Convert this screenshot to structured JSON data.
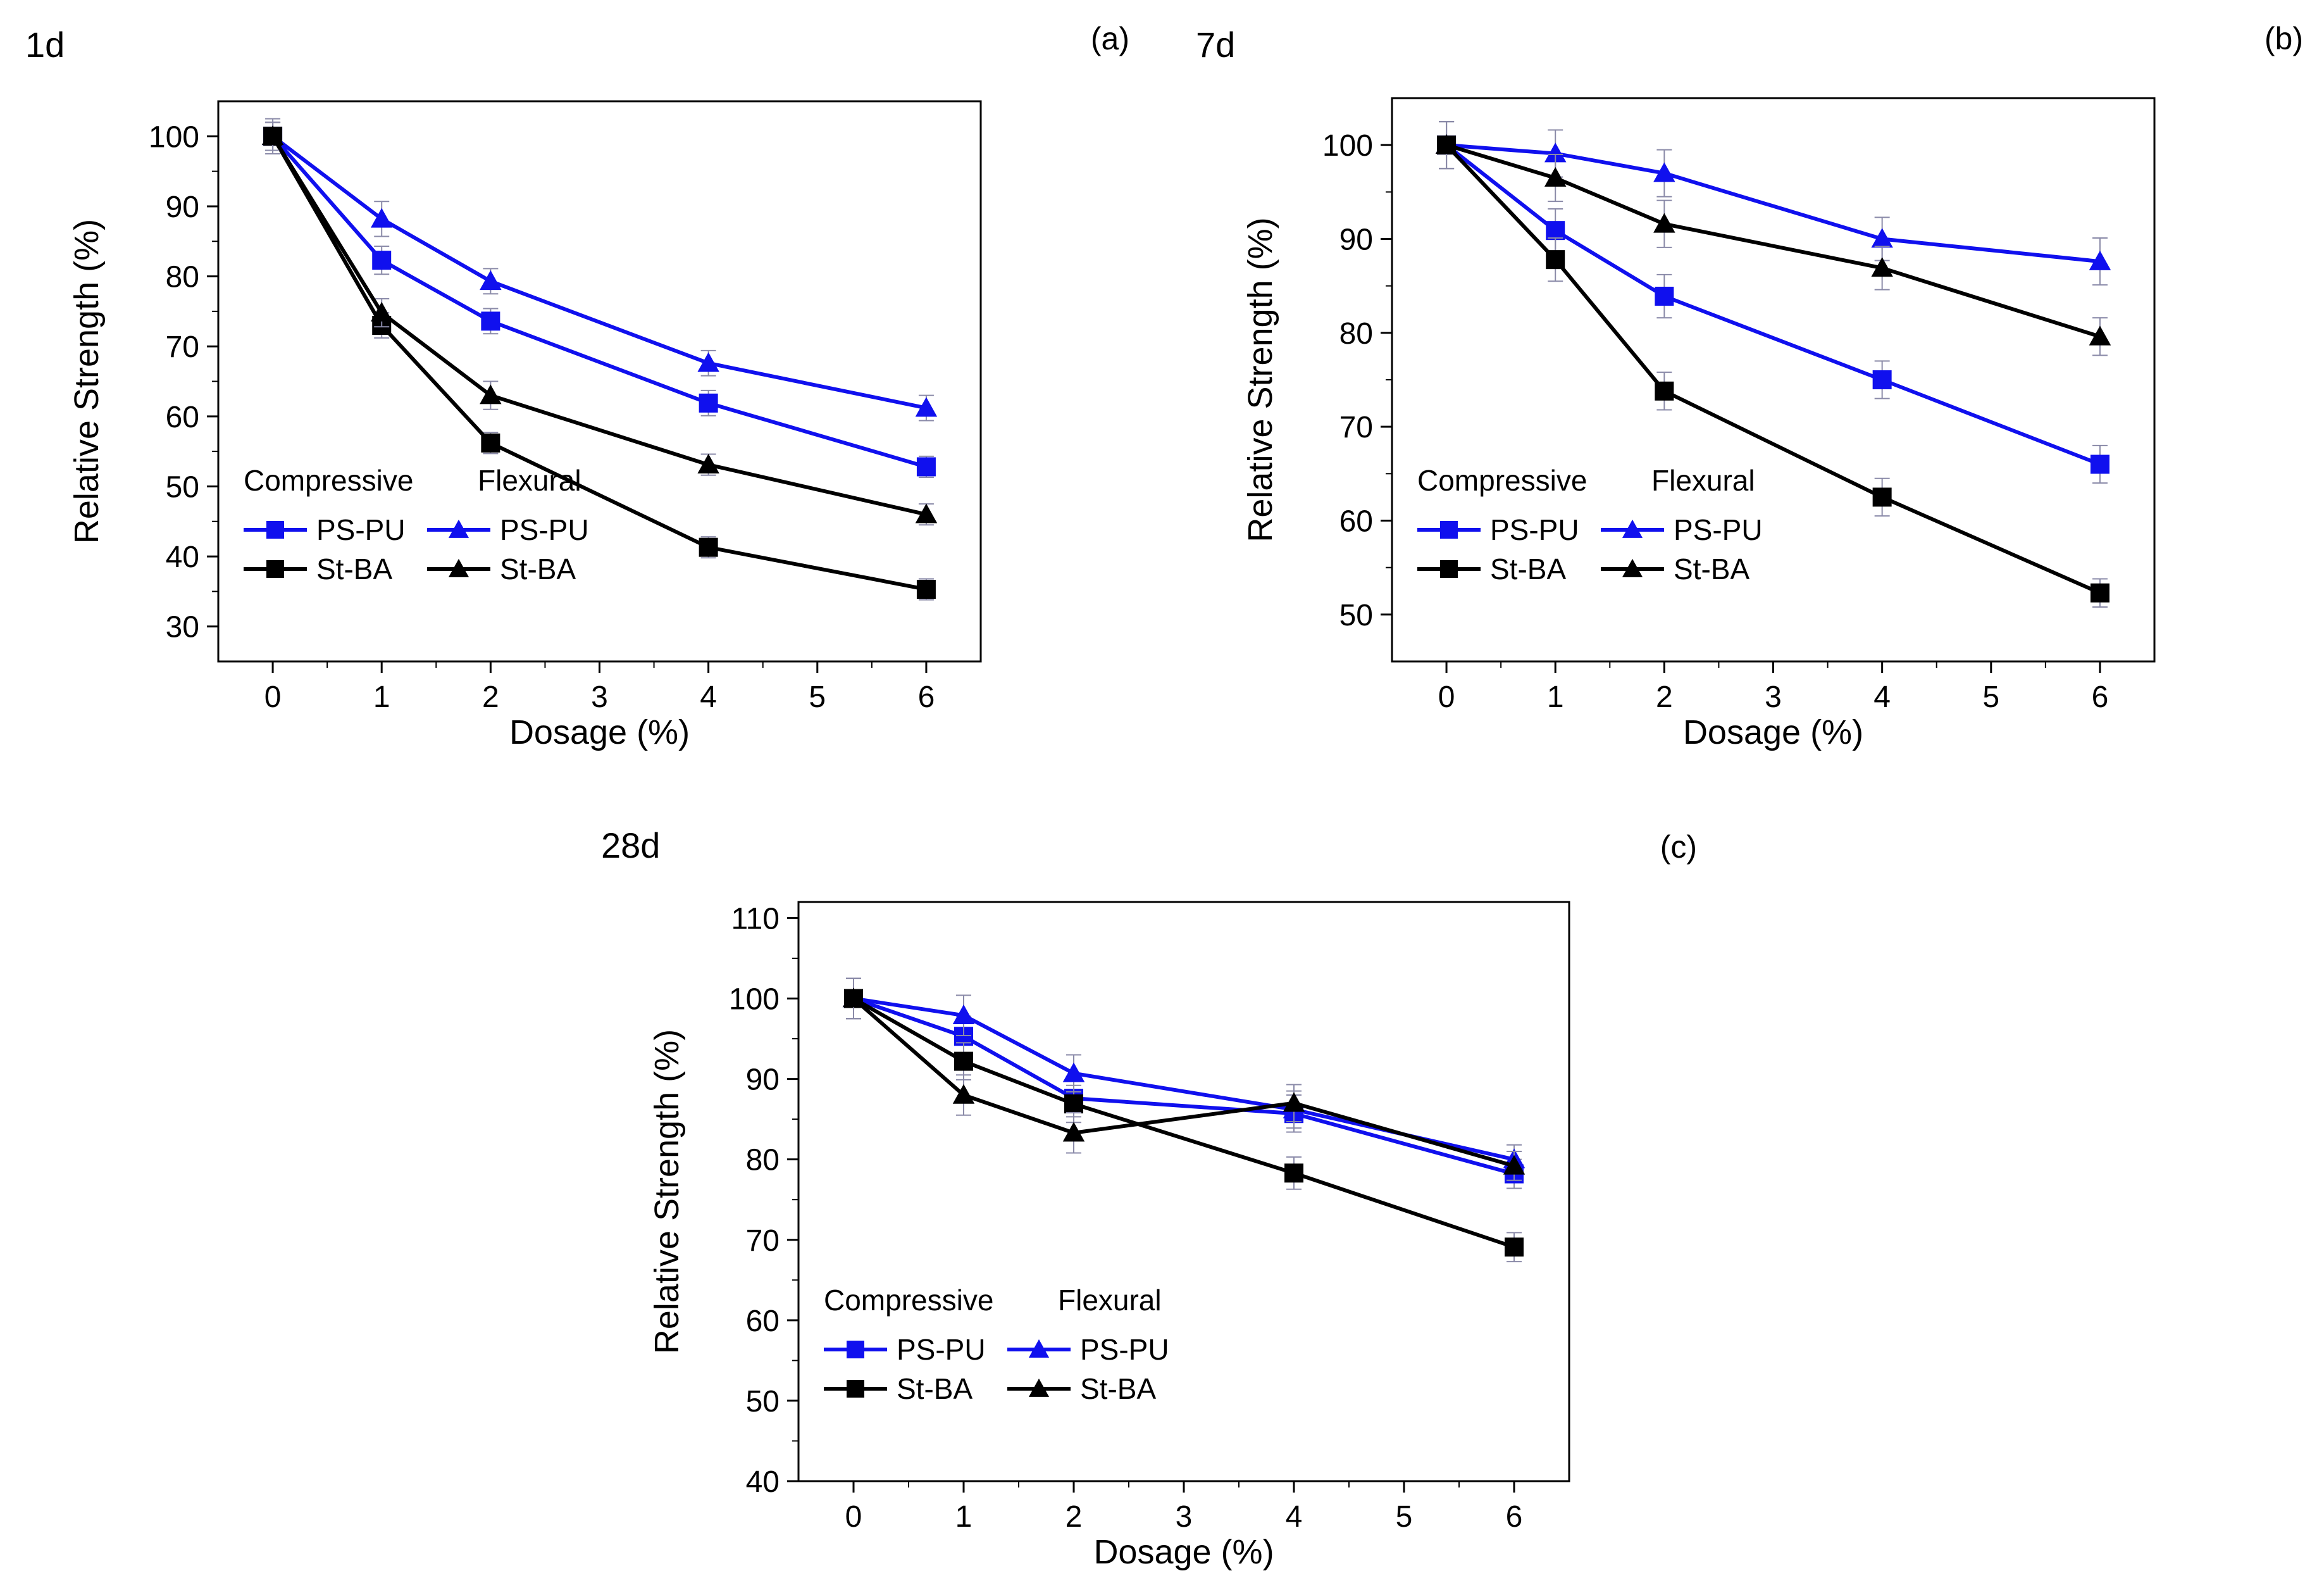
{
  "colors": {
    "blue": "#1010ee",
    "black": "#000000",
    "error_bar": "#8a8aa8"
  },
  "chart_data": [
    {
      "id": "a",
      "type": "line",
      "age_label": "1d",
      "panel_label": "(a)",
      "xlabel": "Dosage (%)",
      "ylabel": "Relative Strength (%)",
      "xlim": [
        -0.5,
        6.5
      ],
      "ylim": [
        25,
        105
      ],
      "xticks": [
        0,
        1,
        2,
        3,
        4,
        5,
        6
      ],
      "yticks": [
        30,
        40,
        50,
        60,
        70,
        80,
        90,
        100
      ],
      "x": [
        0,
        1,
        2,
        4,
        6
      ],
      "legend": {
        "placement": "lower-left",
        "col1_header": "Compressive",
        "col2_header": "Flexural"
      },
      "series": [
        {
          "name": "PS-PU",
          "group": "Compressive",
          "marker": "square",
          "color": "blue",
          "values": [
            100,
            82.3,
            73.6,
            61.9,
            52.8
          ],
          "errors": [
            2,
            2,
            1.8,
            1.8,
            1.5
          ]
        },
        {
          "name": "PS-PU",
          "group": "Flexural",
          "marker": "triangle",
          "color": "blue",
          "values": [
            100,
            88.2,
            79.3,
            67.6,
            61.2
          ],
          "errors": [
            2.5,
            2.5,
            1.8,
            1.8,
            1.8
          ]
        },
        {
          "name": "St-BA",
          "group": "Compressive",
          "marker": "square",
          "color": "black",
          "values": [
            100,
            73.0,
            56.2,
            41.3,
            35.3
          ],
          "errors": [
            2,
            1.8,
            1.5,
            1.5,
            1.5
          ]
        },
        {
          "name": "St-BA",
          "group": "Flexural",
          "marker": "triangle",
          "color": "black",
          "values": [
            100,
            74.8,
            63.0,
            53.1,
            46.0
          ],
          "errors": [
            2,
            2,
            2,
            1.5,
            1.5
          ]
        }
      ]
    },
    {
      "id": "b",
      "type": "line",
      "age_label": "7d",
      "panel_label": "(b)",
      "xlabel": "Dosage (%)",
      "ylabel": "Relative Strength (%)",
      "xlim": [
        -0.5,
        6.5
      ],
      "ylim": [
        45,
        105
      ],
      "xticks": [
        0,
        1,
        2,
        3,
        4,
        5,
        6
      ],
      "yticks": [
        50,
        60,
        70,
        80,
        90,
        100
      ],
      "x": [
        0,
        1,
        2,
        4,
        6
      ],
      "legend": {
        "placement": "lower-left",
        "col1_header": "Compressive",
        "col2_header": "Flexural"
      },
      "series": [
        {
          "name": "PS-PU",
          "group": "Compressive",
          "marker": "square",
          "color": "blue",
          "values": [
            100,
            90.9,
            83.9,
            75.0,
            66.0
          ],
          "errors": [
            2.5,
            2.3,
            2.3,
            2,
            2
          ]
        },
        {
          "name": "PS-PU",
          "group": "Flexural",
          "marker": "triangle",
          "color": "blue",
          "values": [
            100,
            99.1,
            97.0,
            90.0,
            87.6
          ],
          "errors": [
            2.5,
            2.5,
            2.5,
            2.3,
            2.5
          ]
        },
        {
          "name": "St-BA",
          "group": "Compressive",
          "marker": "square",
          "color": "black",
          "values": [
            100,
            87.8,
            73.8,
            62.5,
            52.3
          ],
          "errors": [
            2.5,
            2.3,
            2,
            2,
            1.5
          ]
        },
        {
          "name": "St-BA",
          "group": "Flexural",
          "marker": "triangle",
          "color": "black",
          "values": [
            100,
            96.5,
            91.6,
            86.9,
            79.6
          ],
          "errors": [
            2.5,
            2.5,
            2.5,
            2.3,
            2
          ]
        }
      ]
    },
    {
      "id": "c",
      "type": "line",
      "age_label": "28d",
      "panel_label": "(c)",
      "xlabel": "Dosage (%)",
      "ylabel": "Relative Strength (%)",
      "xlim": [
        -0.5,
        6.5
      ],
      "ylim": [
        40,
        112
      ],
      "xticks": [
        0,
        1,
        2,
        3,
        4,
        5,
        6
      ],
      "yticks": [
        40,
        50,
        60,
        70,
        80,
        90,
        100,
        110
      ],
      "x": [
        0,
        1,
        2,
        4,
        6
      ],
      "legend": {
        "placement": "lower-left",
        "col1_header": "Compressive",
        "col2_header": "Flexural"
      },
      "series": [
        {
          "name": "PS-PU",
          "group": "Compressive",
          "marker": "square",
          "color": "blue",
          "values": [
            100,
            95.3,
            87.6,
            85.7,
            78.2
          ],
          "errors": [
            2.5,
            2.5,
            2.3,
            2.3,
            1.8
          ]
        },
        {
          "name": "PS-PU",
          "group": "Flexural",
          "marker": "triangle",
          "color": "blue",
          "values": [
            100,
            97.9,
            90.7,
            86.2,
            80.0
          ],
          "errors": [
            2.5,
            2.5,
            2.3,
            2.3,
            1.8
          ]
        },
        {
          "name": "St-BA",
          "group": "Compressive",
          "marker": "square",
          "color": "black",
          "values": [
            100,
            92.2,
            86.9,
            78.3,
            69.1
          ],
          "errors": [
            2.5,
            2.3,
            2.3,
            2,
            1.8
          ]
        },
        {
          "name": "St-BA",
          "group": "Flexural",
          "marker": "triangle",
          "color": "black",
          "values": [
            100,
            88.0,
            83.3,
            87.0,
            79.2
          ],
          "errors": [
            2.5,
            2.5,
            2.5,
            2.3,
            1.8
          ]
        }
      ]
    }
  ]
}
